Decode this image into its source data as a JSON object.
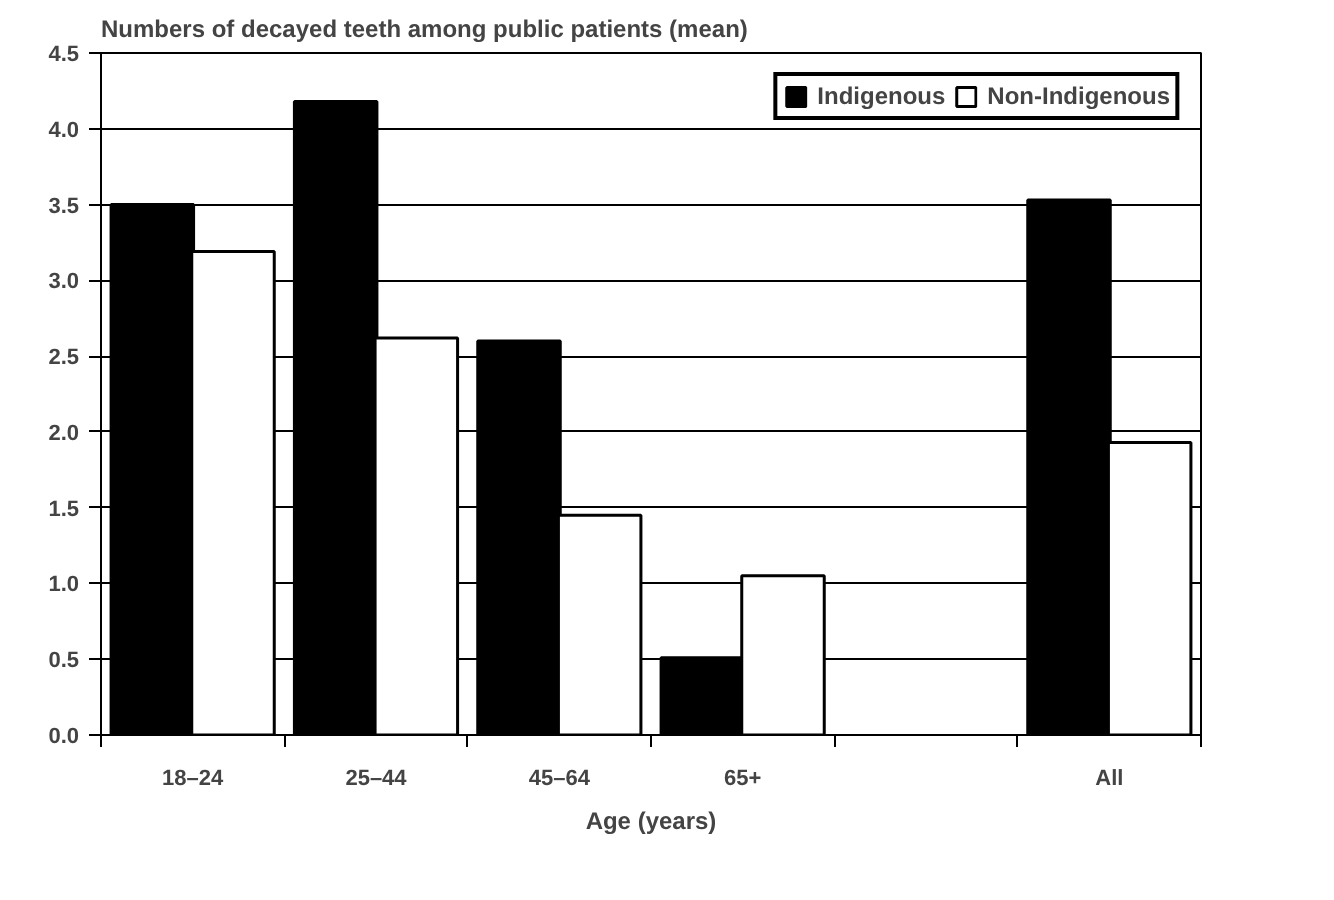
{
  "chart_data": {
    "type": "bar",
    "title": "Numbers of decayed teeth among public patients (mean)",
    "xlabel": "Age (years)",
    "categories": [
      "18–24",
      "25–44",
      "45–64",
      "65+",
      null,
      "All"
    ],
    "series": [
      {
        "name": "Indigenous",
        "color": "#000000",
        "values": [
          3.5,
          4.18,
          2.6,
          0.51,
          null,
          3.53
        ]
      },
      {
        "name": "Non-Indigenous",
        "color": "#ffffff",
        "values": [
          3.19,
          2.62,
          1.45,
          1.05,
          null,
          1.93
        ]
      }
    ],
    "ylim": [
      0,
      4.5
    ],
    "yticks": [
      {
        "value": 0,
        "label": "0.0"
      },
      {
        "value": 0.5,
        "label": "0.5"
      },
      {
        "value": 1,
        "label": "1.0"
      },
      {
        "value": 1.5,
        "label": "1.5"
      },
      {
        "value": 2,
        "label": "2.0"
      },
      {
        "value": 2.5,
        "label": "2.5"
      },
      {
        "value": 3,
        "label": "3.0"
      },
      {
        "value": 3.5,
        "label": "3.5"
      },
      {
        "value": 4,
        "label": "4.0"
      },
      {
        "value": 4.5,
        "label": "4.5"
      }
    ],
    "grid": "y",
    "legend": "top right"
  }
}
